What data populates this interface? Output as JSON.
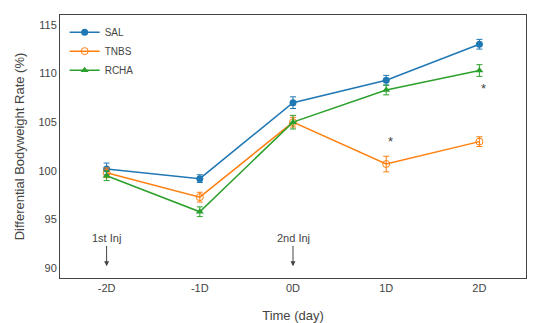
{
  "chart_data": {
    "type": "line",
    "x": [
      -2,
      -1,
      0,
      1,
      2
    ],
    "series": [
      {
        "name": "SAL",
        "marker": "circle",
        "values": [
          100.2,
          99.2,
          107.0,
          109.3,
          113.0
        ],
        "errors": [
          0.6,
          0.4,
          0.6,
          0.5,
          0.5
        ]
      },
      {
        "name": "TNBS",
        "marker": "circle-open",
        "values": [
          99.8,
          97.3,
          105.0,
          100.7,
          103.0
        ],
        "errors": [
          0.5,
          0.5,
          0.5,
          0.8,
          0.5
        ]
      },
      {
        "name": "RCHA",
        "marker": "triangle-up",
        "values": [
          99.5,
          95.8,
          105.0,
          108.3,
          110.3
        ],
        "errors": [
          0.5,
          0.5,
          0.7,
          0.5,
          0.6
        ]
      }
    ],
    "xlabel": "Time (day)",
    "ylabel": "Differential Bodyweight Rate (%)",
    "xlim": [
      -2.5,
      2.5
    ],
    "xticks": [
      {
        "value": -2,
        "label": "-2D"
      },
      {
        "value": -1,
        "label": "-1D"
      },
      {
        "value": 0,
        "label": "0D"
      },
      {
        "value": 1,
        "label": "1D"
      },
      {
        "value": 2,
        "label": "2D"
      }
    ],
    "ylim": [
      89,
      116
    ],
    "yticks": [
      90,
      95,
      100,
      105,
      110,
      115
    ],
    "annotations": [
      {
        "text": "1st Inj",
        "x": -2,
        "y": 92.3,
        "arrow_to": 90.2
      },
      {
        "text": "2nd Inj",
        "x": 0,
        "y": 92.3,
        "arrow_to": 90.2
      },
      {
        "text": "*",
        "x": 1,
        "y": 103.0
      },
      {
        "text": "*",
        "x": 2,
        "y": 108.5
      }
    ],
    "grid": false,
    "legend": "upper left"
  }
}
